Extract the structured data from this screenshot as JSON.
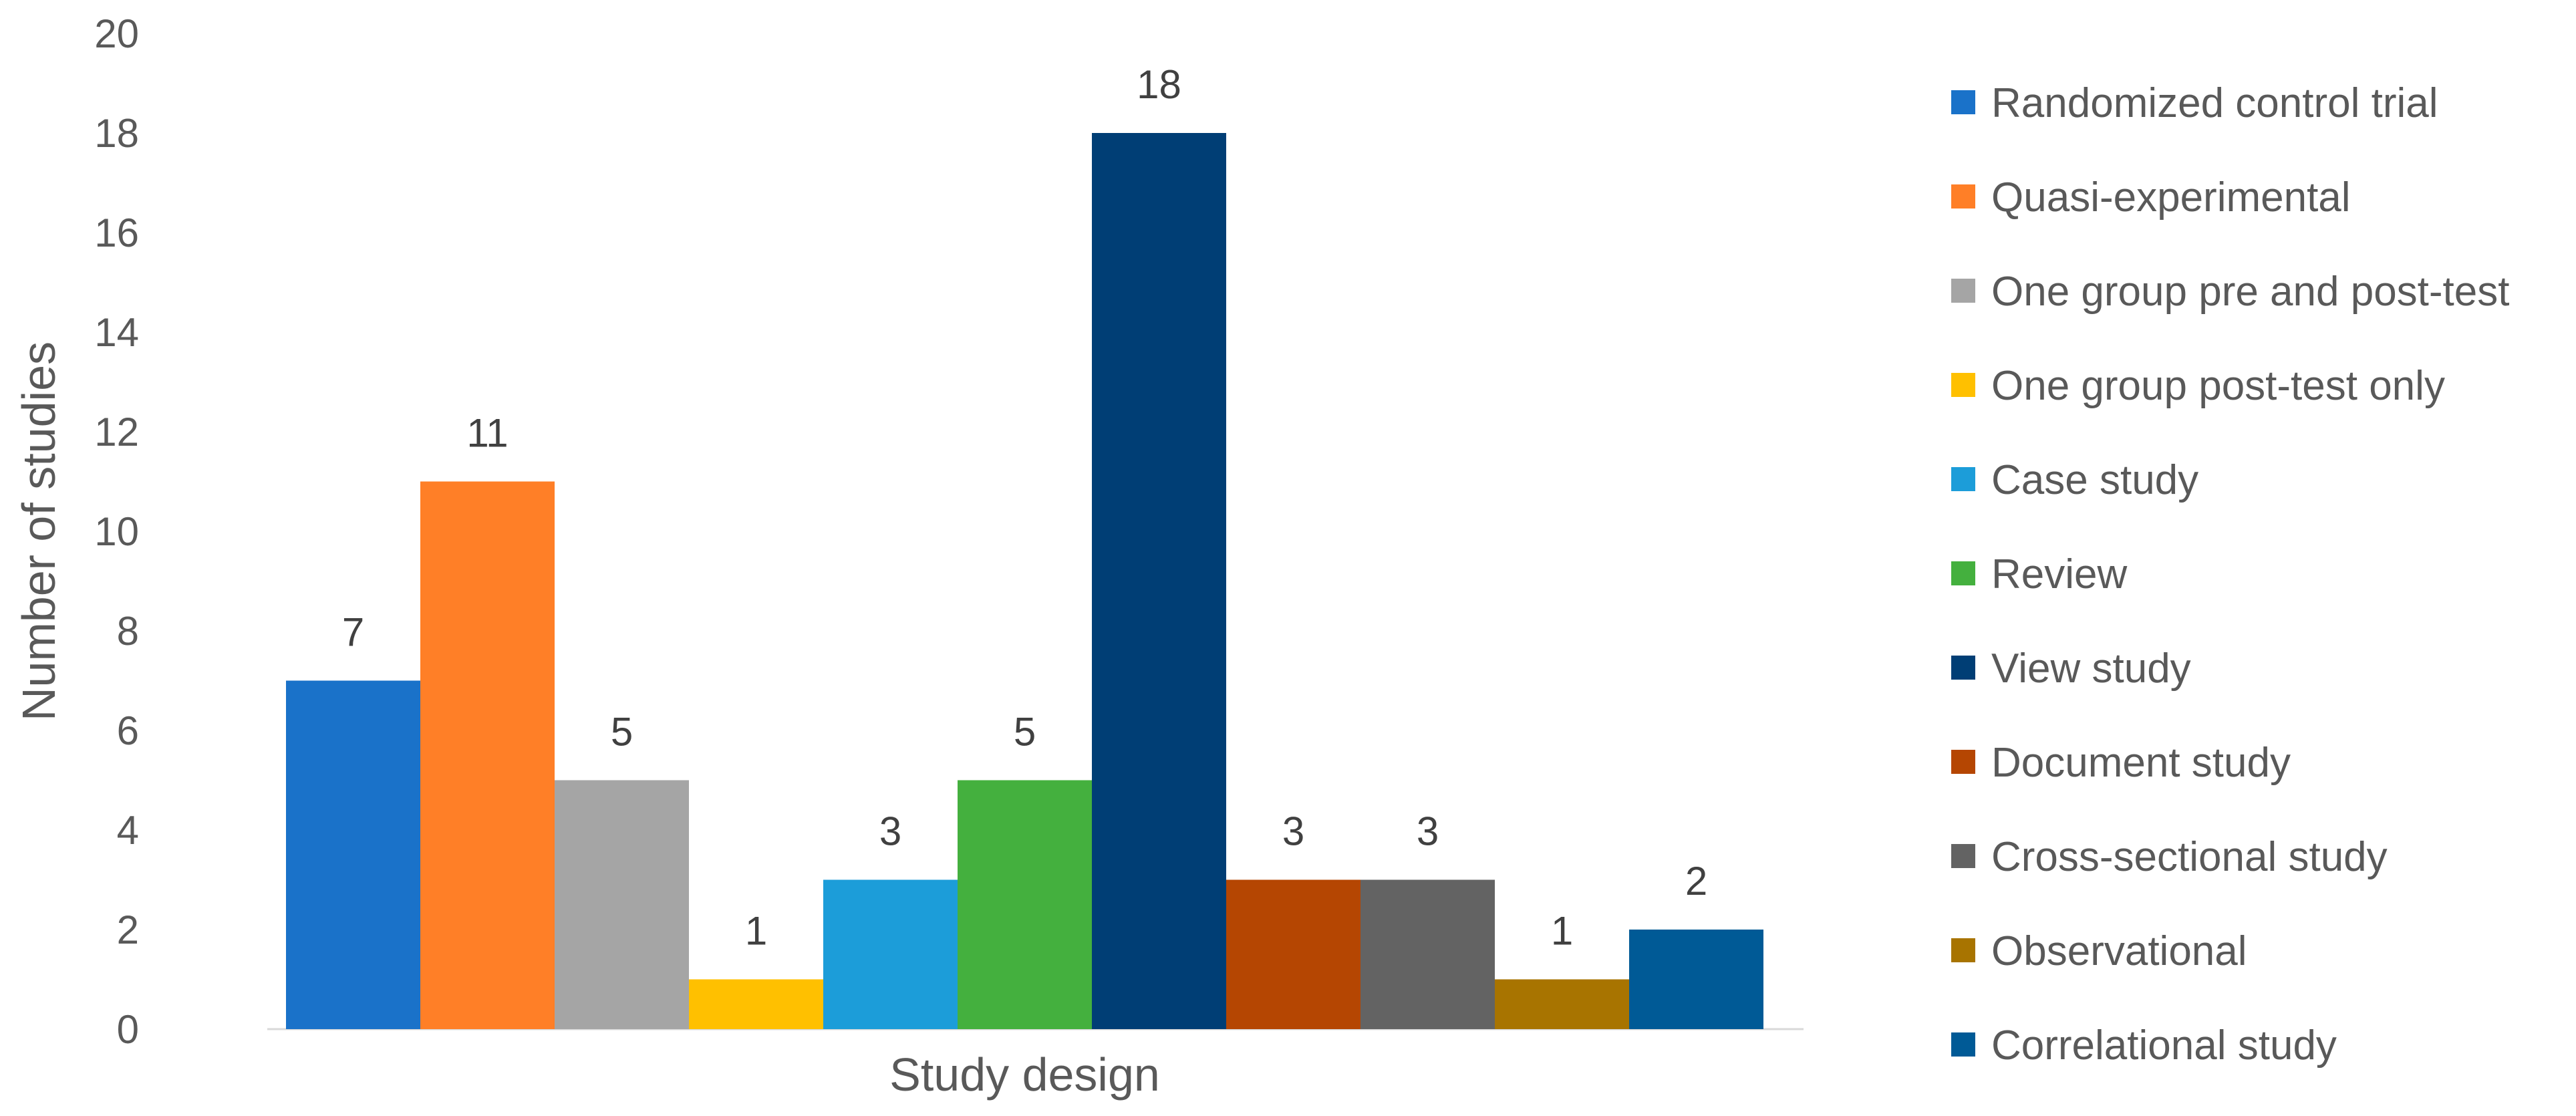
{
  "chart_data": {
    "type": "bar",
    "title": "",
    "xlabel": "Study design",
    "ylabel": "Number of studies",
    "ylim": [
      0,
      20
    ],
    "yticks": [
      0,
      2,
      4,
      6,
      8,
      10,
      12,
      14,
      16,
      18,
      20
    ],
    "grid": false,
    "legend_position": "right",
    "categories": [
      "Study design"
    ],
    "series": [
      {
        "name": "Randomized control trial",
        "values": [
          7
        ],
        "color": "#1A72C9"
      },
      {
        "name": "Quasi-experimental",
        "values": [
          11
        ],
        "color": "#FF7F27"
      },
      {
        "name": "One group pre and post-test",
        "values": [
          5
        ],
        "color": "#A5A5A5"
      },
      {
        "name": "One group post-test only",
        "values": [
          1
        ],
        "color": "#FFC000"
      },
      {
        "name": "Case study",
        "values": [
          3
        ],
        "color": "#1C9DD9"
      },
      {
        "name": "Review",
        "values": [
          5
        ],
        "color": "#44B03E"
      },
      {
        "name": "View study",
        "values": [
          18
        ],
        "color": "#003E75"
      },
      {
        "name": "Document study",
        "values": [
          3
        ],
        "color": "#B54602"
      },
      {
        "name": "Cross-sectional study",
        "values": [
          3
        ],
        "color": "#636363"
      },
      {
        "name": "Observational",
        "values": [
          1
        ],
        "color": "#A87400"
      },
      {
        "name": "Correlational study",
        "values": [
          2
        ],
        "color": "#005A96"
      }
    ]
  }
}
